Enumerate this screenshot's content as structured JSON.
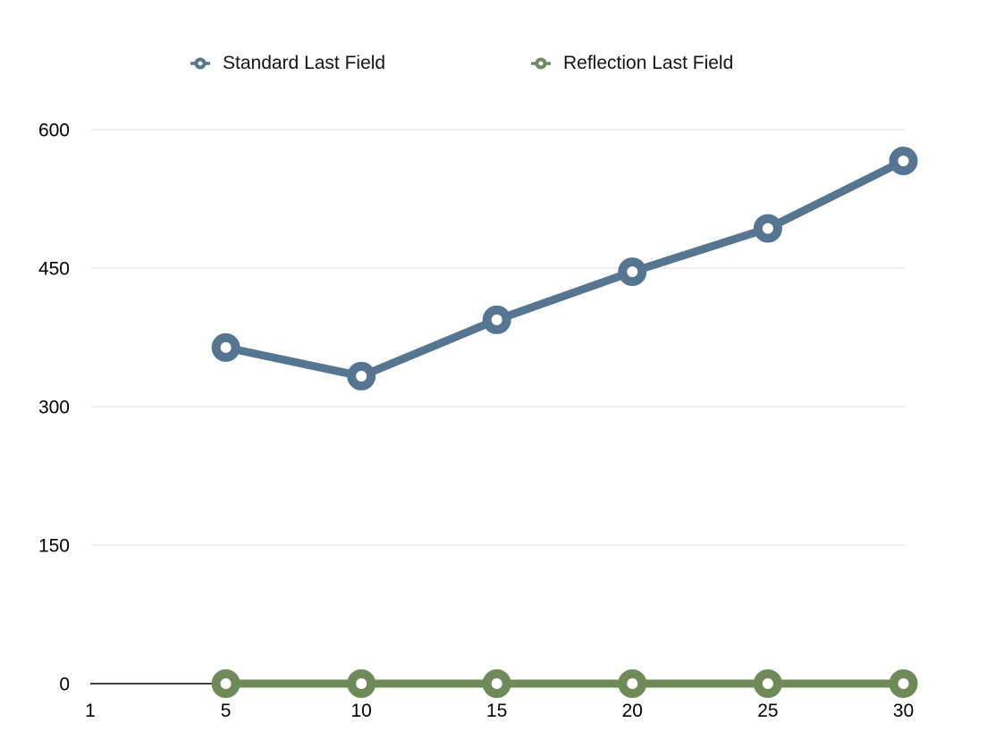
{
  "legend": {
    "items": [
      {
        "label": "Standard Last Field",
        "color": "#557590"
      },
      {
        "label": "Reflection Last Field",
        "color": "#6f8a59"
      }
    ]
  },
  "chart_data": {
    "type": "line",
    "title": "",
    "xlabel": "",
    "ylabel": "",
    "categories": [
      "1",
      "5",
      "10",
      "15",
      "20",
      "25",
      "30"
    ],
    "y_ticks": [
      0,
      150,
      300,
      450,
      600
    ],
    "ylim": [
      0,
      600
    ],
    "grid": "horizontal",
    "legend_position": "top",
    "marker_style": "open-circle",
    "series": [
      {
        "name": "Standard Last Field",
        "color": "#557590",
        "categories": [
          "5",
          "10",
          "15",
          "20",
          "25",
          "30"
        ],
        "values": [
          364,
          333,
          394,
          446,
          493,
          566
        ]
      },
      {
        "name": "Reflection Last Field",
        "color": "#6f8a59",
        "categories": [
          "5",
          "10",
          "15",
          "20",
          "25",
          "30"
        ],
        "values": [
          0,
          0,
          0,
          0,
          0,
          0
        ]
      }
    ],
    "colors": {
      "gridline": "#dcdcdc",
      "axis_line": "#000000",
      "tick_text": "#000000"
    }
  }
}
